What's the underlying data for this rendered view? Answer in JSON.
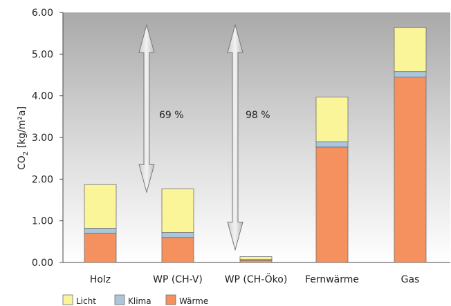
{
  "chart_data": {
    "type": "bar",
    "stacked": true,
    "categories": [
      "Holz",
      "WP (CH-V)",
      "WP (CH-Öko)",
      "Fernwärme",
      "Gas"
    ],
    "series": [
      {
        "name": "Wärme",
        "color": "#f4915e",
        "values": [
          0.7,
          0.6,
          0.05,
          2.77,
          4.45
        ]
      },
      {
        "name": "Klima",
        "color": "#aac5dc",
        "values": [
          0.12,
          0.12,
          0.02,
          0.13,
          0.13
        ]
      },
      {
        "name": "Licht",
        "color": "#fbf59a",
        "values": [
          1.05,
          1.05,
          0.07,
          1.07,
          1.06
        ]
      }
    ],
    "y_ticks": [
      "0.00",
      "1.00",
      "2.00",
      "3.00",
      "4.00",
      "5.00",
      "6.00"
    ],
    "ylim": [
      0,
      6
    ],
    "ylabel_main": "CO",
    "ylabel_sub": "2",
    "ylabel_rest": " [kg/m²a]",
    "grid": false,
    "background": "vertical gray gradient",
    "legend_position": "bottom-left",
    "annotations": [
      {
        "text": "69 %",
        "from": "WP (CH-V)"
      },
      {
        "text": "98 %",
        "from": "WP (CH-Öko)"
      }
    ]
  }
}
